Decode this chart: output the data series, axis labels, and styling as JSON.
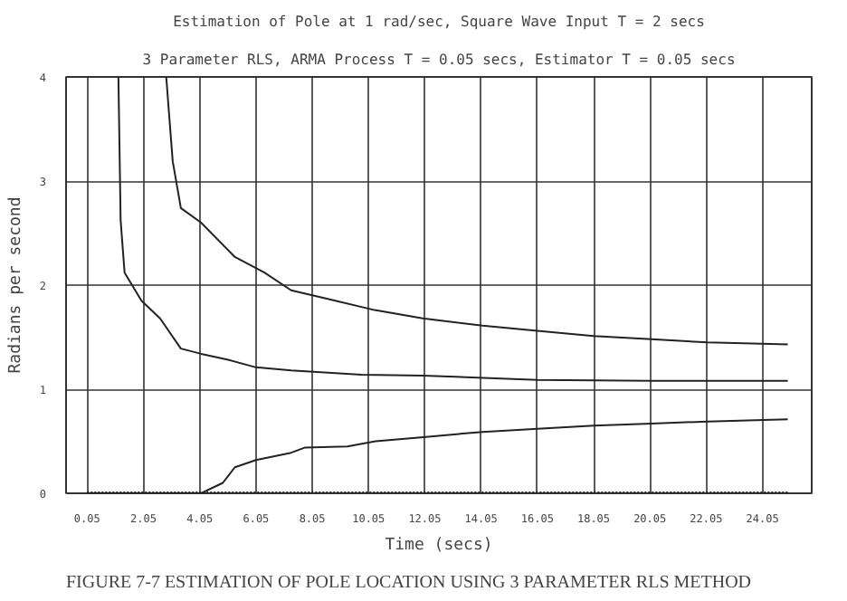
{
  "chart_data": {
    "type": "line",
    "title": "Estimation of Pole at 1 rad/sec, Square Wave Input T = 2 secs",
    "subtitle": "3 Parameter RLS, ARMA Process T = 0.05 secs, Estimator T = 0.05 secs",
    "xlabel": "Time (secs)",
    "ylabel": "Radians per second",
    "annotations": [
      "FIGURE 7-7 ESTIMATION OF POLE LOCATION USING 3 PARAMETER RLS METHOD"
    ],
    "xlim": [
      -0.7,
      25.8
    ],
    "ylim": [
      0,
      4
    ],
    "xticks": [
      0.05,
      2.05,
      4.05,
      6.05,
      8.05,
      10.05,
      12.05,
      14.05,
      16.05,
      18.05,
      20.05,
      22.05,
      24.05
    ],
    "yticks": [
      0,
      1,
      2,
      3,
      4
    ],
    "grid": true,
    "marker": "none",
    "series": [
      {
        "color": "#222222",
        "x": [
          2.86,
          3.09,
          3.38,
          4.1,
          5.3,
          6.35,
          7.3,
          8.57,
          10.27,
          11.98,
          14.1,
          16.05,
          18.05,
          20.1,
          22.1,
          24.95
        ],
        "values": [
          4,
          3.19,
          2.74,
          2.6,
          2.27,
          2.12,
          1.95,
          1.87,
          1.76,
          1.68,
          1.61,
          1.56,
          1.51,
          1.48,
          1.45,
          1.43
        ]
      },
      {
        "color": "#222222",
        "x": [
          1.16,
          1.24,
          1.38,
          1.98,
          2.64,
          3.38,
          4.1,
          5.1,
          6.05,
          7.3,
          9.8,
          12,
          16.05,
          20.1,
          24.95
        ],
        "values": [
          4,
          2.62,
          2.12,
          1.85,
          1.68,
          1.39,
          1.34,
          1.28,
          1.21,
          1.18,
          1.14,
          1.13,
          1.09,
          1.08,
          1.08
        ]
      },
      {
        "color": "#222222",
        "x": [
          0.05,
          4.1,
          4.87,
          5.3,
          6.05,
          7.3,
          7.8,
          9.3,
          10.3,
          12,
          14.1,
          16.05,
          18.05,
          20.1,
          22.1,
          24.95
        ],
        "values": [
          0,
          0,
          0.1,
          0.25,
          0.32,
          0.39,
          0.44,
          0.45,
          0.5,
          0.54,
          0.59,
          0.62,
          0.65,
          0.67,
          0.69,
          0.71
        ]
      },
      {
        "color": "#222222",
        "line_style": "dotted",
        "x": [
          0.05,
          24.95
        ],
        "values": [
          0,
          0
        ]
      }
    ]
  }
}
